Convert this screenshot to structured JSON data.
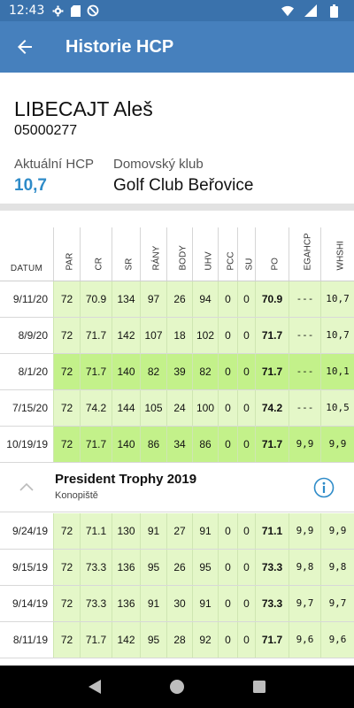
{
  "status_bar": {
    "time": "12:43",
    "icons_left": [
      "gear-icon",
      "sd-card-icon",
      "no-sync-icon"
    ],
    "icons_right": [
      "wifi-icon",
      "signal-icon",
      "battery-icon"
    ]
  },
  "app_bar": {
    "title": "Historie HCP",
    "back_icon": "arrow-back-icon"
  },
  "profile": {
    "name": "LIBECAJT Aleš",
    "id": "05000277",
    "hcp_label": "Aktuální HCP",
    "hcp_value": "10,7",
    "club_label": "Domovský klub",
    "club_value": "Golf Club Beřovice"
  },
  "table": {
    "date_header": "DATUM",
    "columns": [
      "PAR",
      "CR",
      "SR",
      "RÁNY",
      "BODY",
      "UHV",
      "PCC",
      "SU",
      "PO",
      "EGAHCP",
      "WHSHI"
    ],
    "rows_top": [
      {
        "date": "9/11/20",
        "style": "light",
        "cells": [
          "72",
          "70.9",
          "134",
          "97",
          "26",
          "94",
          "0",
          "0",
          "70.9",
          "---",
          "10,7"
        ]
      },
      {
        "date": "8/9/20",
        "style": "light",
        "cells": [
          "72",
          "71.7",
          "142",
          "107",
          "18",
          "102",
          "0",
          "0",
          "71.7",
          "---",
          "10,7"
        ]
      },
      {
        "date": "8/1/20",
        "style": "bright",
        "cells": [
          "72",
          "71.7",
          "140",
          "82",
          "39",
          "82",
          "0",
          "0",
          "71.7",
          "---",
          "10,1"
        ]
      },
      {
        "date": "7/15/20",
        "style": "light",
        "cells": [
          "72",
          "74.2",
          "144",
          "105",
          "24",
          "100",
          "0",
          "0",
          "74.2",
          "---",
          "10,5"
        ]
      },
      {
        "date": "10/19/19",
        "style": "bright",
        "cells": [
          "72",
          "71.7",
          "140",
          "86",
          "34",
          "86",
          "0",
          "0",
          "71.7",
          "9,9",
          "9,9"
        ]
      }
    ],
    "tournament": {
      "name": "President Trophy 2019",
      "location": "Konopiště",
      "chevron_icon": "chevron-up-icon",
      "info_icon": "info-icon"
    },
    "rows_bottom": [
      {
        "date": "9/24/19",
        "style": "light",
        "cells": [
          "72",
          "71.1",
          "130",
          "91",
          "27",
          "91",
          "0",
          "0",
          "71.1",
          "9,9",
          "9,9"
        ]
      },
      {
        "date": "9/15/19",
        "style": "light",
        "cells": [
          "72",
          "73.3",
          "136",
          "95",
          "26",
          "95",
          "0",
          "0",
          "73.3",
          "9,8",
          "9,8"
        ]
      },
      {
        "date": "9/14/19",
        "style": "light",
        "cells": [
          "72",
          "73.3",
          "136",
          "91",
          "30",
          "91",
          "0",
          "0",
          "73.3",
          "9,7",
          "9,7"
        ]
      },
      {
        "date": "8/11/19",
        "style": "light",
        "cells": [
          "72",
          "71.7",
          "142",
          "95",
          "28",
          "92",
          "0",
          "0",
          "71.7",
          "9,6",
          "9,6"
        ]
      }
    ]
  },
  "nav_bar": {
    "icons": [
      "back-triangle-icon",
      "home-circle-icon",
      "recents-square-icon"
    ]
  },
  "colors": {
    "status_bar": "#3a72ac",
    "app_bar": "#4680bd",
    "hcp_value": "#2e8bc8",
    "row_light": "#e4f7c8",
    "row_bright": "#c3f18a"
  }
}
